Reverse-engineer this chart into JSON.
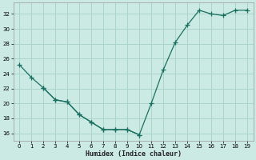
{
  "xlabel": "Humidex (Indice chaleur)",
  "background_color": "#cceae4",
  "grid_color": "#aad4cc",
  "line_color": "#1a7060",
  "xlim": [
    -0.5,
    19.5
  ],
  "ylim": [
    15.0,
    33.5
  ],
  "xticks": [
    0,
    1,
    2,
    3,
    4,
    5,
    6,
    7,
    8,
    9,
    10,
    11,
    12,
    13,
    14,
    15,
    16,
    17,
    18,
    19
  ],
  "yticks": [
    16,
    18,
    20,
    22,
    24,
    26,
    28,
    30,
    32
  ],
  "line1_x": [
    0,
    1,
    2,
    3,
    4,
    5,
    6,
    7,
    8,
    9,
    10
  ],
  "line1_y": [
    25.2,
    23.5,
    22.1,
    20.5,
    20.2,
    18.5,
    17.5,
    16.5,
    16.5,
    16.5,
    15.8
  ],
  "line2_x": [
    2,
    3,
    4,
    5,
    6,
    7,
    8,
    9,
    10,
    11,
    12,
    13,
    14,
    15,
    16,
    17,
    18,
    19
  ],
  "line2_y": [
    22.1,
    20.5,
    20.2,
    18.5,
    17.5,
    16.5,
    16.5,
    16.5,
    15.8,
    20.0,
    24.5,
    28.2,
    30.5,
    32.5,
    32.0,
    31.8,
    32.5,
    32.5
  ]
}
